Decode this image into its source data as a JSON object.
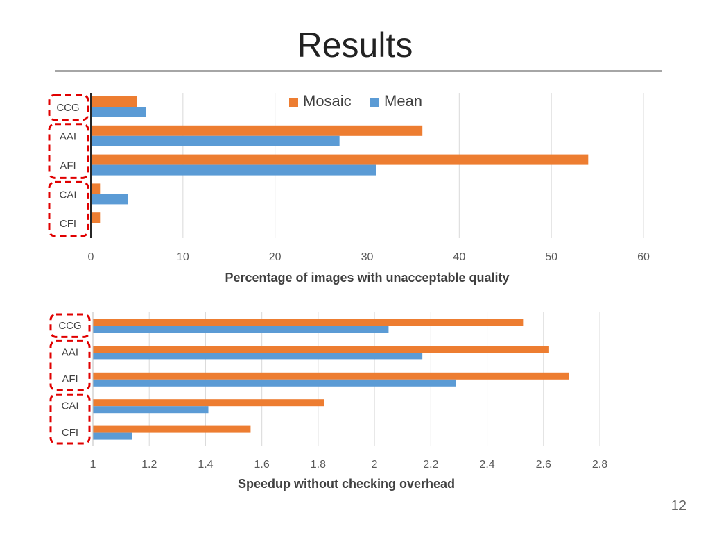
{
  "slide": {
    "title": "Results",
    "page_number": "12"
  },
  "colors": {
    "mosaic": "#ED7D31",
    "mean": "#5B9BD5",
    "highlight_box": "#E00000"
  },
  "chart_data": [
    {
      "type": "bar",
      "orientation": "horizontal",
      "categories": [
        "CCG",
        "AAI",
        "AFI",
        "CAI",
        "CFI"
      ],
      "series": [
        {
          "name": "Mosaic",
          "values": [
            5,
            36,
            54,
            1,
            1
          ]
        },
        {
          "name": "Mean",
          "values": [
            6,
            27,
            31,
            4,
            0
          ]
        }
      ],
      "xlabel": "Percentage of images with unacceptable quality",
      "xlim": [
        0,
        60
      ],
      "ticks": [
        "0",
        "10",
        "20",
        "30",
        "40",
        "50",
        "60"
      ],
      "legend_position": "top",
      "grid": true,
      "highlight_groups": [
        [
          "CCG"
        ],
        [
          "AAI",
          "AFI"
        ],
        [
          "CAI",
          "CFI"
        ]
      ]
    },
    {
      "type": "bar",
      "orientation": "horizontal",
      "categories": [
        "CCG",
        "AAI",
        "AFI",
        "CAI",
        "CFI"
      ],
      "series": [
        {
          "name": "Mosaic",
          "values": [
            2.53,
            2.62,
            2.69,
            1.82,
            1.56
          ]
        },
        {
          "name": "Mean",
          "values": [
            2.05,
            2.17,
            2.29,
            1.41,
            1.14
          ]
        }
      ],
      "xlabel": "Speedup without checking overhead",
      "xlim": [
        1,
        2.8
      ],
      "ticks": [
        "1",
        "1.2",
        "1.4",
        "1.6",
        "1.8",
        "2",
        "2.2",
        "2.4",
        "2.6",
        "2.8"
      ],
      "legend_position": "none",
      "grid": true,
      "highlight_groups": [
        [
          "CCG"
        ],
        [
          "AAI",
          "AFI"
        ],
        [
          "CAI",
          "CFI"
        ]
      ]
    }
  ]
}
